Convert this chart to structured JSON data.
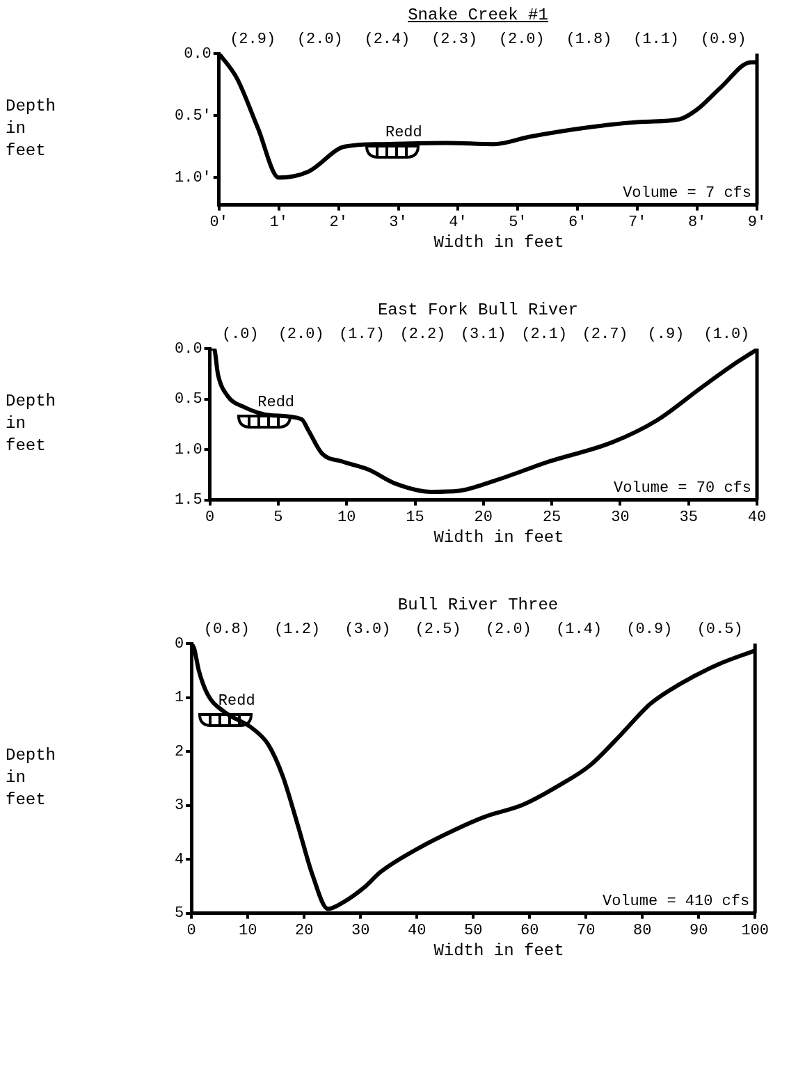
{
  "chart_data": [
    {
      "type": "line",
      "title": "Snake Creek #1",
      "xlabel": "Width in feet",
      "ylabel": "Depth in feet",
      "xlim": [
        0,
        9
      ],
      "ylim": [
        1.22,
        0
      ],
      "grid": false,
      "xticks": [
        {
          "value": 0,
          "label": "0'"
        },
        {
          "value": 1,
          "label": "1'"
        },
        {
          "value": 2,
          "label": "2'"
        },
        {
          "value": 3,
          "label": "3'"
        },
        {
          "value": 4,
          "label": "4'"
        },
        {
          "value": 5,
          "label": "5'"
        },
        {
          "value": 6,
          "label": "6'"
        },
        {
          "value": 7,
          "label": "7'"
        },
        {
          "value": 8,
          "label": "8'"
        },
        {
          "value": 9,
          "label": "9'"
        }
      ],
      "yticks": [
        {
          "value": 0,
          "label": "0.0"
        },
        {
          "value": 0.5,
          "label": "0.5'"
        },
        {
          "value": 1,
          "label": "1.0'"
        }
      ],
      "series": [
        {
          "color": "#000000",
          "x": [
            0,
            0.3,
            0.65,
            1.0,
            1.5,
            2.1,
            2.7,
            3.8,
            4.6,
            5.2,
            6.1,
            7.1,
            7.7,
            8.0,
            8.4,
            8.9,
            9
          ],
          "values": [
            0,
            0.2,
            0.6,
            1.0,
            0.95,
            0.75,
            0.73,
            0.72,
            0.73,
            0.67,
            0.6,
            0.55,
            0.53,
            0.45,
            0.27,
            0.07,
            0.07
          ]
        }
      ],
      "annotations": [
        "(2.9)",
        "(2.0)",
        "(2.4)",
        "(2.3)",
        "(2.0)",
        "(1.8)",
        "(1.1)",
        "(0.9)",
        {
          "text": "Redd",
          "x": 2.9,
          "y": 0.74
        },
        "Volume = 7 cfs"
      ]
    },
    {
      "type": "line",
      "title": "East Fork Bull River",
      "xlabel": "Width in feet",
      "ylabel": "Depth in feet",
      "xlim": [
        0,
        40
      ],
      "ylim": [
        1.5,
        0
      ],
      "grid": false,
      "xticks": [
        0,
        5,
        10,
        15,
        20,
        25,
        30,
        35,
        40
      ],
      "yticks": [
        {
          "value": 0,
          "label": "0.0"
        },
        {
          "value": 0.5,
          "label": "0.5"
        },
        {
          "value": 1,
          "label": "1.0"
        },
        {
          "value": 1.5,
          "label": "1.5"
        }
      ],
      "series": [
        {
          "color": "#000000",
          "x": [
            0,
            0.3,
            0.6,
            1.3,
            2.5,
            4.4,
            6.7,
            7.2,
            8.2,
            9.7,
            11.6,
            13.6,
            16.2,
            18.2,
            20.8,
            24.8,
            29.4,
            32.7,
            35.9,
            38.6,
            40
          ],
          "values": [
            0,
            0,
            0.26,
            0.47,
            0.58,
            0.66,
            0.7,
            0.81,
            1.04,
            1.12,
            1.2,
            1.34,
            1.42,
            1.41,
            1.31,
            1.12,
            0.93,
            0.71,
            0.39,
            0.13,
            0.01
          ]
        }
      ],
      "annotations": [
        "(.0)",
        "(2.0)",
        "(1.7)",
        "(2.2)",
        "(3.1)",
        "(2.1)",
        "(2.7)",
        "(.9)",
        "(1.0)",
        {
          "text": "Redd",
          "x": 4,
          "y": 0.66
        },
        "Volume = 70 cfs"
      ]
    },
    {
      "type": "line",
      "title": "Bull River Three",
      "xlabel": "Width in feet",
      "ylabel": "Depth in feet",
      "xlim": [
        0,
        100
      ],
      "ylim": [
        5,
        0
      ],
      "grid": false,
      "xticks": [
        0,
        10,
        20,
        30,
        40,
        50,
        60,
        70,
        80,
        90,
        100
      ],
      "yticks": [
        0,
        1,
        2,
        3,
        4,
        5
      ],
      "series": [
        {
          "color": "#000000",
          "x": [
            0,
            0.5,
            1.3,
            2.9,
            5.6,
            10.9,
            13.6,
            16.2,
            18.9,
            21.5,
            24.2,
            26.9,
            30.9,
            33.5,
            40.2,
            46.8,
            52.1,
            58.8,
            65.4,
            70.7,
            76.1,
            81.4,
            86.7,
            93.4,
            100
          ],
          "values": [
            0,
            0.1,
            0.5,
            0.95,
            1.25,
            1.58,
            1.87,
            2.46,
            3.38,
            4.3,
            4.92,
            4.8,
            4.5,
            4.24,
            3.8,
            3.45,
            3.21,
            2.99,
            2.62,
            2.26,
            1.7,
            1.12,
            0.75,
            0.39,
            0.13
          ]
        }
      ],
      "annotations": [
        "(0.8)",
        "(1.2)",
        "(3.0)",
        "(2.5)",
        "(2.0)",
        "(1.4)",
        "(0.9)",
        "(0.5)",
        {
          "text": "Redd",
          "x": 6,
          "y": 1.3
        },
        "Volume = 410 cfs"
      ]
    }
  ]
}
